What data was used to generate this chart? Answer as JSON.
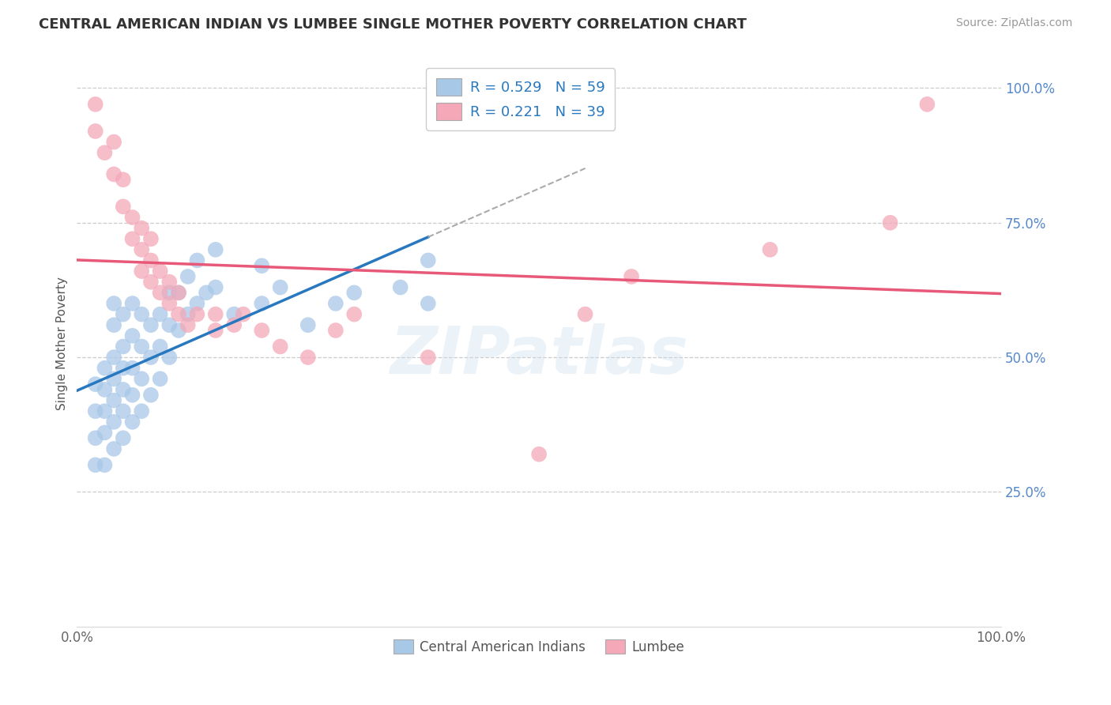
{
  "title": "CENTRAL AMERICAN INDIAN VS LUMBEE SINGLE MOTHER POVERTY CORRELATION CHART",
  "source": "Source: ZipAtlas.com",
  "ylabel": "Single Mother Poverty",
  "xlim": [
    0,
    1
  ],
  "ylim": [
    0,
    1
  ],
  "legend_r1": "R = 0.529",
  "legend_n1": "N = 59",
  "legend_r2": "R = 0.221",
  "legend_n2": "N = 39",
  "legend_label1": "Central American Indians",
  "legend_label2": "Lumbee",
  "blue_color": "#a8c8e8",
  "pink_color": "#f4a8b8",
  "blue_line_color": "#2878c0",
  "pink_line_color": "#e85878",
  "blue_points_x": [
    0.02,
    0.02,
    0.02,
    0.02,
    0.03,
    0.03,
    0.03,
    0.03,
    0.03,
    0.04,
    0.04,
    0.04,
    0.04,
    0.04,
    0.04,
    0.04,
    0.05,
    0.05,
    0.05,
    0.05,
    0.05,
    0.05,
    0.06,
    0.06,
    0.06,
    0.06,
    0.06,
    0.07,
    0.07,
    0.07,
    0.07,
    0.08,
    0.08,
    0.08,
    0.09,
    0.09,
    0.09,
    0.1,
    0.1,
    0.1,
    0.11,
    0.11,
    0.12,
    0.12,
    0.13,
    0.13,
    0.14,
    0.15,
    0.15,
    0.17,
    0.2,
    0.2,
    0.22,
    0.25,
    0.28,
    0.3,
    0.35,
    0.38,
    0.38
  ],
  "blue_points_y": [
    0.3,
    0.35,
    0.4,
    0.45,
    0.3,
    0.36,
    0.4,
    0.44,
    0.48,
    0.33,
    0.38,
    0.42,
    0.46,
    0.5,
    0.56,
    0.6,
    0.35,
    0.4,
    0.44,
    0.48,
    0.52,
    0.58,
    0.38,
    0.43,
    0.48,
    0.54,
    0.6,
    0.4,
    0.46,
    0.52,
    0.58,
    0.43,
    0.5,
    0.56,
    0.46,
    0.52,
    0.58,
    0.5,
    0.56,
    0.62,
    0.55,
    0.62,
    0.58,
    0.65,
    0.6,
    0.68,
    0.62,
    0.63,
    0.7,
    0.58,
    0.6,
    0.67,
    0.63,
    0.56,
    0.6,
    0.62,
    0.63,
    0.6,
    0.68
  ],
  "pink_points_x": [
    0.02,
    0.02,
    0.03,
    0.04,
    0.04,
    0.05,
    0.05,
    0.06,
    0.06,
    0.07,
    0.07,
    0.07,
    0.08,
    0.08,
    0.08,
    0.09,
    0.09,
    0.1,
    0.1,
    0.11,
    0.11,
    0.12,
    0.13,
    0.15,
    0.15,
    0.17,
    0.18,
    0.2,
    0.22,
    0.25,
    0.28,
    0.3,
    0.38,
    0.5,
    0.55,
    0.6,
    0.75,
    0.88,
    0.92
  ],
  "pink_points_y": [
    0.92,
    0.97,
    0.88,
    0.84,
    0.9,
    0.78,
    0.83,
    0.72,
    0.76,
    0.66,
    0.7,
    0.74,
    0.64,
    0.68,
    0.72,
    0.62,
    0.66,
    0.6,
    0.64,
    0.58,
    0.62,
    0.56,
    0.58,
    0.55,
    0.58,
    0.56,
    0.58,
    0.55,
    0.52,
    0.5,
    0.55,
    0.58,
    0.5,
    0.32,
    0.58,
    0.65,
    0.7,
    0.75,
    0.97
  ],
  "ytick_positions": [
    1.0,
    0.75,
    0.5,
    0.25
  ],
  "ytick_labels": [
    "100.0%",
    "75.0%",
    "50.0%",
    "25.0%"
  ]
}
